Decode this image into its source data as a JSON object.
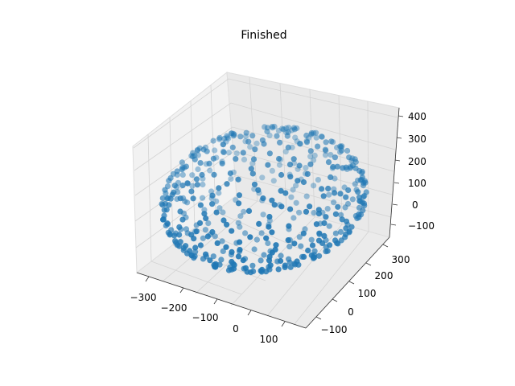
{
  "chart_data": {
    "type": "scatter3d",
    "title": "Finished",
    "xlabel": "",
    "ylabel": "",
    "zlabel": "",
    "xlim": [
      -330,
      170
    ],
    "ylim": [
      -150,
      330
    ],
    "zlim": [
      -130,
      410
    ],
    "x_ticks": [
      "−300",
      "−200",
      "−100",
      "0",
      "100"
    ],
    "y_ticks": [
      "−100",
      "0",
      "100",
      "200",
      "300"
    ],
    "z_ticks": [
      "−100",
      "0",
      "100",
      "200",
      "300",
      "400"
    ],
    "grid": true,
    "marker_color": "#1f77b4",
    "center": [
      -80,
      90,
      140
    ],
    "radius": 230,
    "point_count": 500,
    "points_note": "Points lie on the surface of a sphere of the given radius centred at the given centre."
  }
}
